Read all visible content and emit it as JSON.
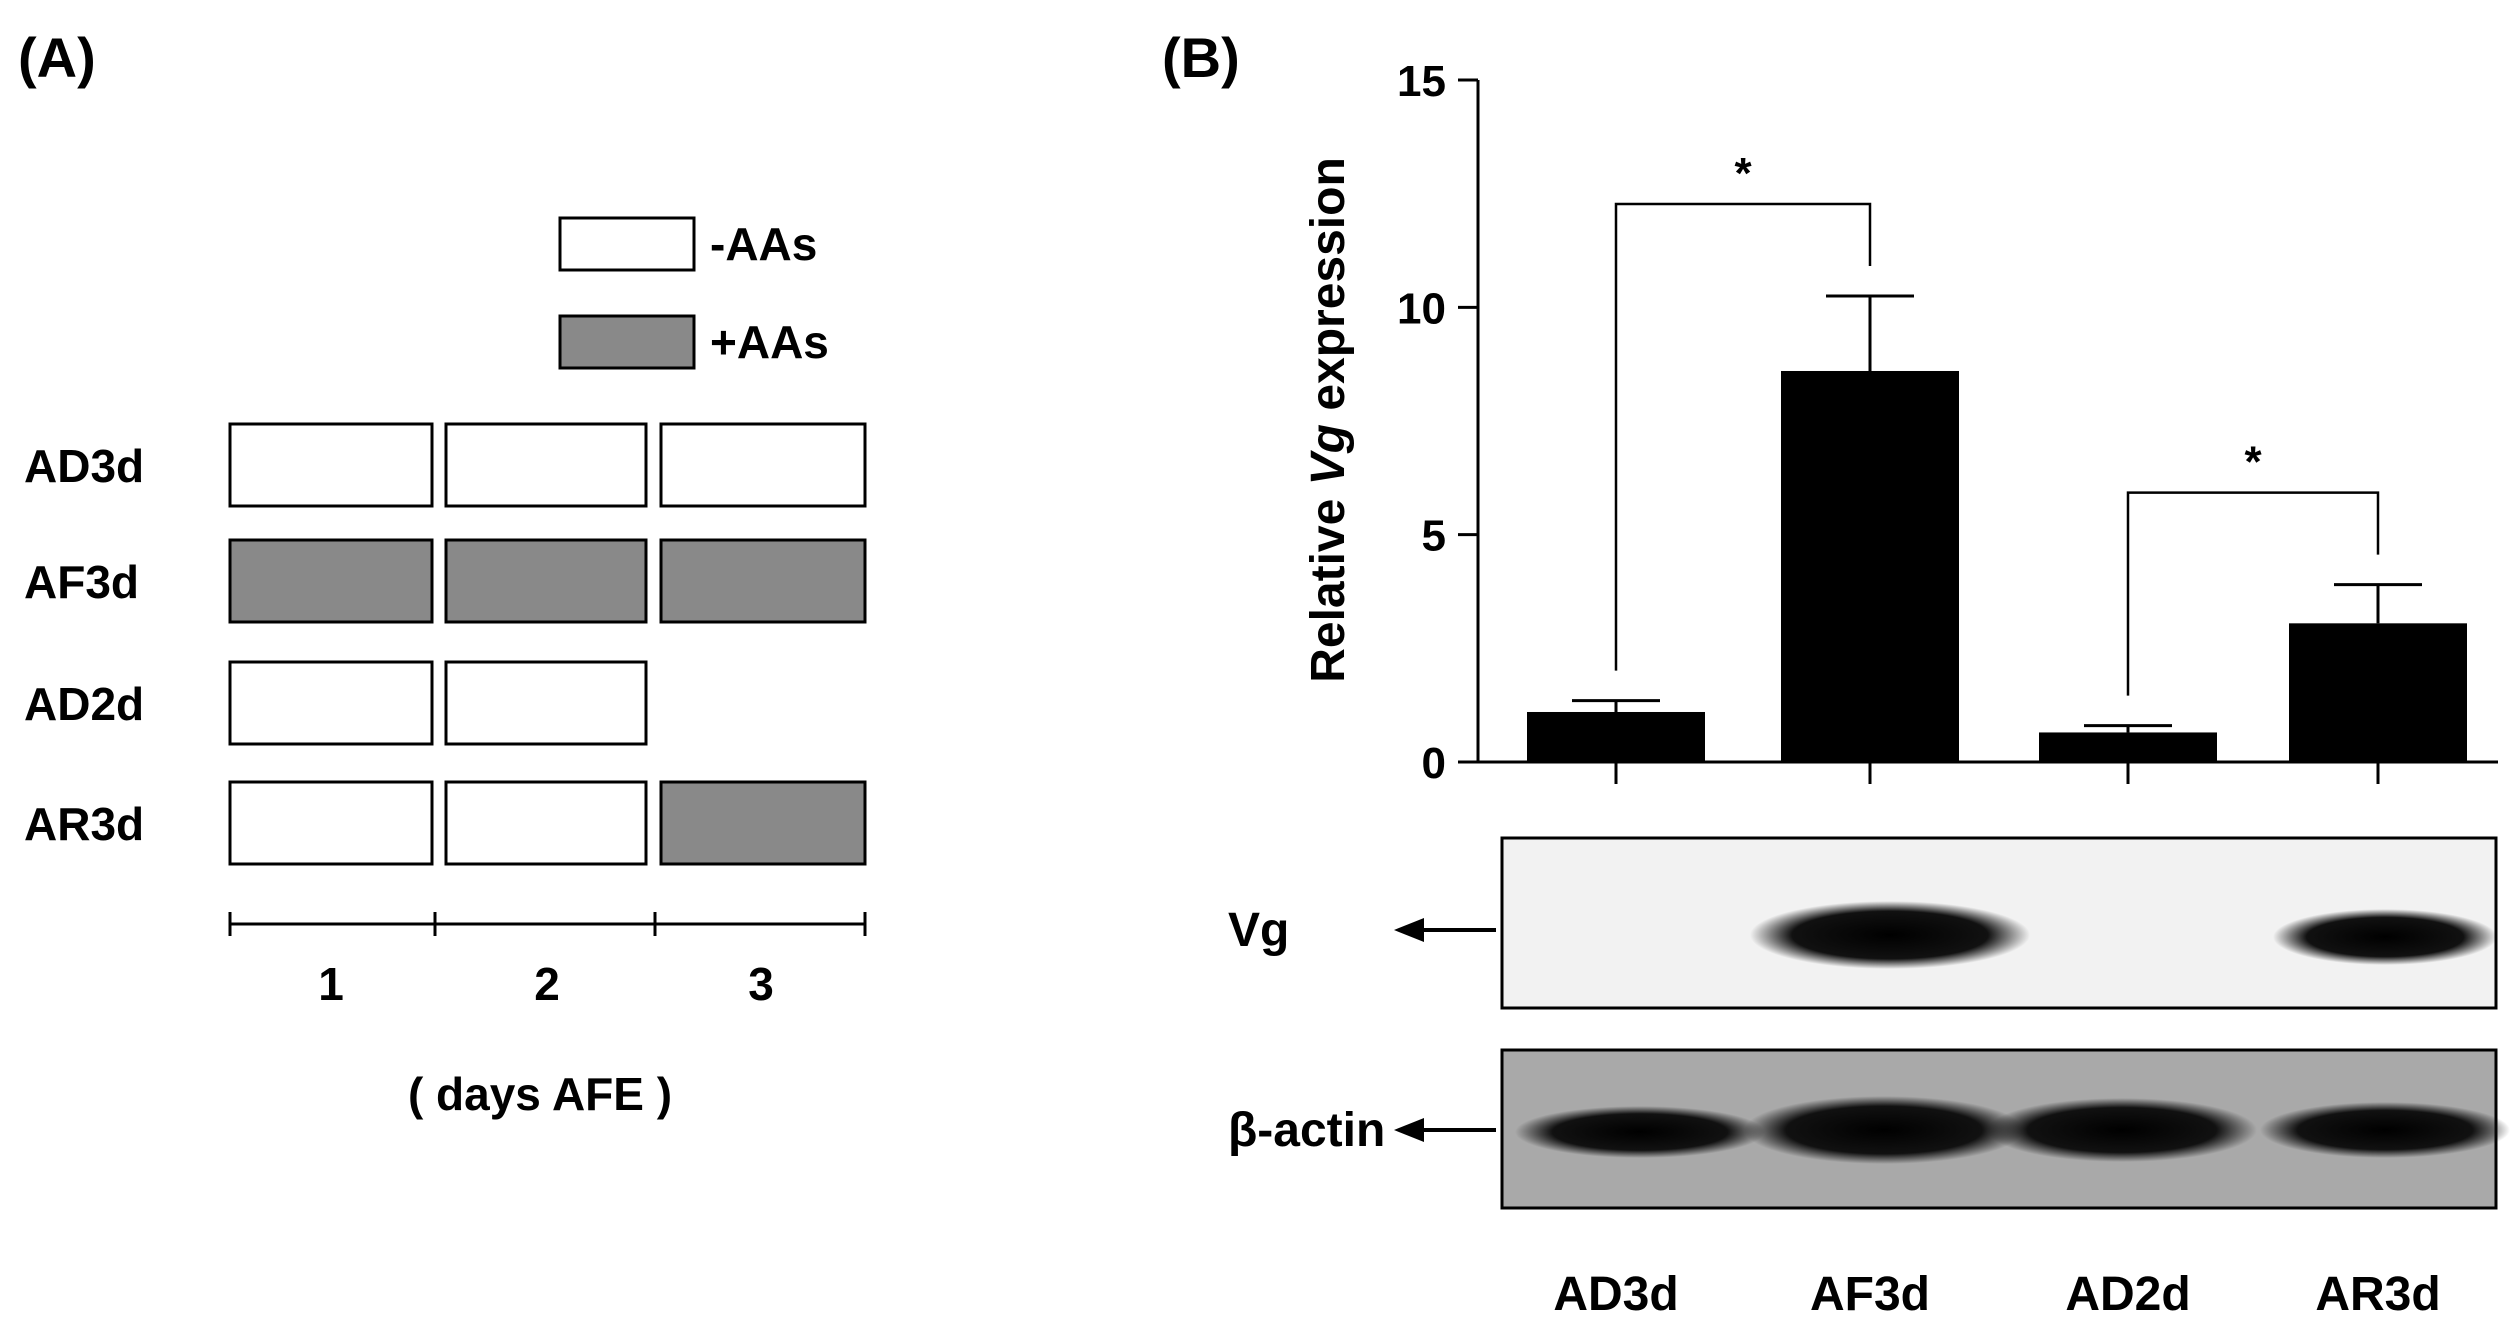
{
  "panel_a": {
    "label": "(A)",
    "legend": [
      {
        "label": "-AAs",
        "fill": "#ffffff"
      },
      {
        "label": "+AAs",
        "fill": "#898989"
      }
    ],
    "rows": [
      {
        "name": "AD3d",
        "days": [
          "-AAs",
          "-AAs",
          "-AAs"
        ]
      },
      {
        "name": "AF3d",
        "days": [
          "+AAs",
          "+AAs",
          "+AAs"
        ]
      },
      {
        "name": "AD2d",
        "days": [
          "-AAs",
          "-AAs"
        ]
      },
      {
        "name": "AR3d",
        "days": [
          "-AAs",
          "-AAs",
          "+AAs"
        ]
      }
    ],
    "day_ticks": [
      "1",
      "2",
      "3"
    ],
    "axis_label": "( days AFE )"
  },
  "panel_b": {
    "label": "(B)",
    "blot_labels": [
      "Vg",
      "β-actin"
    ],
    "lane_labels": [
      "AD3d",
      "AF3d",
      "AD2d",
      "AR3d"
    ]
  },
  "chart_data": {
    "type": "bar",
    "categories": [
      "AD3d",
      "AF3d",
      "AD2d",
      "AR3d"
    ],
    "values": [
      1.1,
      8.6,
      0.65,
      3.05
    ],
    "errors": [
      0.25,
      1.65,
      0.15,
      0.85
    ],
    "ylabel_prefix": "Relative ",
    "ylabel_italic": "Vg",
    "ylabel_suffix": " expression",
    "ylim": [
      0,
      15
    ],
    "yticks": [
      0,
      5,
      10,
      15
    ],
    "bar_color": "#000000",
    "significance": [
      {
        "from": 0,
        "to": 1,
        "label": "*"
      },
      {
        "from": 2,
        "to": 3,
        "label": "*"
      }
    ],
    "grid": false
  }
}
